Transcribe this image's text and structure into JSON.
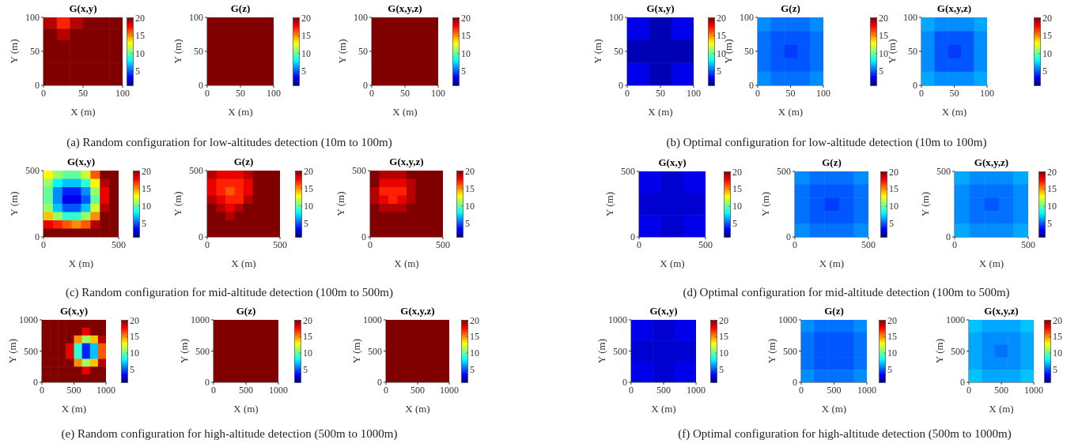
{
  "chart_data": [
    {
      "type": "heatmap",
      "title": "G(x,y)",
      "xlabel": "X (m)",
      "ylabel": "Y (m)",
      "xlim": [
        0,
        100
      ],
      "ylim": [
        0,
        100
      ],
      "xticks": [
        0,
        50,
        100
      ],
      "yticks": [
        0,
        50,
        100
      ],
      "clim": [
        1,
        20
      ],
      "cticks": [
        5,
        10,
        15,
        20
      ],
      "cells": [
        [
          19,
          17,
          19,
          20,
          20,
          20
        ],
        [
          20,
          19,
          20,
          20,
          20,
          20
        ],
        [
          20,
          20,
          20,
          20,
          20,
          20
        ],
        [
          20,
          20,
          20,
          20,
          20,
          20
        ],
        [
          20,
          20,
          20,
          20,
          20,
          20
        ],
        [
          20,
          20,
          20,
          20,
          20,
          20
        ]
      ]
    },
    {
      "type": "heatmap",
      "title": "G(z)",
      "xlabel": "X (m)",
      "ylabel": "Y (m)",
      "xlim": [
        0,
        100
      ],
      "ylim": [
        0,
        100
      ],
      "xticks": [
        0,
        50,
        100
      ],
      "yticks": [
        0,
        50,
        100
      ],
      "clim": [
        1,
        20
      ],
      "cticks": [
        5,
        10,
        15,
        20
      ],
      "cells": [
        [
          20
        ]
      ],
      "annotations": [
        "(a) Random configuration for low-altitudes detection (10m to 100m)"
      ]
    },
    {
      "type": "heatmap",
      "title": "G(x,y,z)",
      "xlabel": "X (m)",
      "ylabel": "Y (m)",
      "xlim": [
        0,
        100
      ],
      "ylim": [
        0,
        100
      ],
      "xticks": [
        0,
        50,
        100
      ],
      "yticks": [
        0,
        50,
        100
      ],
      "clim": [
        1,
        20
      ],
      "cticks": [
        5,
        10,
        15,
        20
      ],
      "cells": [
        [
          20
        ]
      ]
    },
    {
      "type": "heatmap",
      "title": "G(x,y)",
      "xlabel": "X (m)",
      "ylabel": "Y (m)",
      "xlim": [
        0,
        100
      ],
      "ylim": [
        0,
        100
      ],
      "xticks": [
        0,
        50,
        100
      ],
      "yticks": [
        0,
        50,
        100
      ],
      "clim": [
        1,
        20
      ],
      "cticks": [
        5,
        10,
        15,
        20
      ],
      "cells": [
        [
          3,
          2,
          3
        ],
        [
          2,
          2,
          2
        ],
        [
          3,
          2,
          3
        ]
      ]
    },
    {
      "type": "heatmap",
      "title": "G(z)",
      "xlabel": "X (m)",
      "ylabel": "Y (m)",
      "xlim": [
        0,
        100
      ],
      "ylim": [
        0,
        100
      ],
      "xticks": [
        0,
        50,
        100
      ],
      "yticks": [
        0,
        50,
        100
      ],
      "clim": [
        1,
        20
      ],
      "cticks": [
        5,
        10,
        15,
        20
      ],
      "cells": [
        [
          6,
          5.5,
          5.5,
          5.5,
          6
        ],
        [
          5.5,
          5,
          5,
          5,
          5.5
        ],
        [
          5.5,
          5,
          4.5,
          5,
          5.5
        ],
        [
          5.5,
          5,
          5,
          5,
          5.5
        ],
        [
          6,
          5.5,
          5.5,
          5.5,
          6
        ]
      ],
      "annotations": [
        "(b) Optimal configuration for low-altitude detection (10m to 100m)"
      ]
    },
    {
      "type": "heatmap",
      "title": "G(x,y,z)",
      "xlabel": "X (m)",
      "ylabel": "Y (m)",
      "xlim": [
        0,
        100
      ],
      "ylim": [
        0,
        100
      ],
      "xticks": [
        0,
        50,
        100
      ],
      "yticks": [
        0,
        50,
        100
      ],
      "clim": [
        1,
        20
      ],
      "cticks": [
        5,
        10,
        15,
        20
      ],
      "cells": [
        [
          6.5,
          6,
          6,
          6,
          6.5
        ],
        [
          6,
          5,
          5,
          5,
          6
        ],
        [
          6,
          5,
          4.5,
          5,
          6
        ],
        [
          6,
          5,
          5,
          5,
          6
        ],
        [
          6.5,
          6,
          6,
          6,
          6.5
        ]
      ]
    },
    {
      "type": "heatmap",
      "title": "G(x,y)",
      "xlabel": "X (m)",
      "ylabel": "Y (m)",
      "xlim": [
        0,
        500
      ],
      "ylim": [
        0,
        500
      ],
      "xticks": [
        0,
        500
      ],
      "yticks": [
        0,
        500
      ],
      "clim": [
        1,
        20
      ],
      "cticks": [
        5,
        10,
        15,
        20
      ],
      "cells": [
        [
          13,
          11,
          10,
          10,
          12,
          16,
          20,
          20
        ],
        [
          11,
          8,
          7,
          7,
          9,
          13,
          19,
          20
        ],
        [
          10,
          6,
          4,
          4,
          6,
          11,
          18,
          20
        ],
        [
          10,
          6,
          3,
          3,
          5,
          10,
          18,
          20
        ],
        [
          11,
          7,
          5,
          5,
          7,
          12,
          19,
          20
        ],
        [
          14,
          11,
          9,
          9,
          11,
          15,
          20,
          20
        ],
        [
          18,
          17,
          16,
          15,
          16,
          19,
          20,
          20
        ],
        [
          20,
          20,
          20,
          20,
          20,
          20,
          20,
          20
        ]
      ]
    },
    {
      "type": "heatmap",
      "title": "G(z)",
      "xlabel": "X (m)",
      "ylabel": "Y (m)",
      "xlim": [
        0,
        500
      ],
      "ylim": [
        0,
        500
      ],
      "xticks": [
        0,
        500
      ],
      "yticks": [
        0,
        500
      ],
      "clim": [
        1,
        20
      ],
      "cticks": [
        5,
        10,
        15,
        20
      ],
      "cells": [
        [
          19,
          18,
          18,
          18,
          19,
          20,
          20,
          20
        ],
        [
          18,
          17,
          17,
          17,
          18,
          20,
          20,
          20
        ],
        [
          18,
          17,
          16,
          17,
          18,
          20,
          20,
          20
        ],
        [
          19,
          18,
          17,
          17,
          19,
          20,
          20,
          20
        ],
        [
          20,
          19,
          18,
          19,
          20,
          20,
          20,
          20
        ],
        [
          20,
          20,
          19,
          20,
          20,
          20,
          20,
          20
        ],
        [
          20,
          20,
          20,
          20,
          20,
          20,
          20,
          20
        ],
        [
          20,
          20,
          20,
          20,
          20,
          20,
          20,
          20
        ]
      ],
      "annotations": [
        "(c) Random configuration for mid-altitude detection (100m to 500m)"
      ]
    },
    {
      "type": "heatmap",
      "title": "G(x,y,z)",
      "xlabel": "X (m)",
      "ylabel": "Y (m)",
      "xlim": [
        0,
        500
      ],
      "ylim": [
        0,
        500
      ],
      "xticks": [
        0,
        500
      ],
      "yticks": [
        0,
        500
      ],
      "clim": [
        1,
        20
      ],
      "cticks": [
        5,
        10,
        15,
        20
      ],
      "cells": [
        [
          20,
          19,
          19,
          19,
          20,
          20,
          20,
          20
        ],
        [
          20,
          18,
          18,
          18,
          19,
          20,
          20,
          20
        ],
        [
          19,
          17,
          17,
          17,
          19,
          20,
          20,
          20
        ],
        [
          19,
          18,
          17,
          18,
          19,
          20,
          20,
          20
        ],
        [
          20,
          19,
          19,
          19,
          20,
          20,
          20,
          20
        ],
        [
          20,
          20,
          20,
          20,
          20,
          20,
          20,
          20
        ],
        [
          20,
          20,
          20,
          20,
          20,
          20,
          20,
          20
        ],
        [
          20,
          20,
          20,
          20,
          20,
          20,
          20,
          20
        ]
      ]
    },
    {
      "type": "heatmap",
      "title": "G(x,y)",
      "xlabel": "X (m)",
      "ylabel": "Y (m)",
      "xlim": [
        0,
        500
      ],
      "ylim": [
        0,
        500
      ],
      "xticks": [
        0,
        500
      ],
      "yticks": [
        0,
        500
      ],
      "clim": [
        1,
        20
      ],
      "cticks": [
        5,
        10,
        15,
        20
      ],
      "cells": [
        [
          3,
          2.5,
          3
        ],
        [
          2.5,
          2.5,
          2.5
        ],
        [
          3,
          2.5,
          3
        ]
      ]
    },
    {
      "type": "heatmap",
      "title": "G(z)",
      "xlabel": "X (m)",
      "ylabel": "Y (m)",
      "xlim": [
        0,
        500
      ],
      "ylim": [
        0,
        500
      ],
      "xticks": [
        0,
        500
      ],
      "yticks": [
        0,
        500
      ],
      "clim": [
        1,
        20
      ],
      "cticks": [
        5,
        10,
        15,
        20
      ],
      "cells": [
        [
          6,
          5.5,
          5.5,
          5.5,
          6
        ],
        [
          5.5,
          5,
          5,
          5,
          5.5
        ],
        [
          5.5,
          5,
          4.5,
          5,
          5.5
        ],
        [
          5.5,
          5,
          5,
          5,
          5.5
        ],
        [
          6,
          5.5,
          5.5,
          5.5,
          6
        ]
      ],
      "annotations": [
        "(d) Optimal configuration for mid-altitude detection (100m to 500m)"
      ]
    },
    {
      "type": "heatmap",
      "title": "G(x,y,z)",
      "xlabel": "X (m)",
      "ylabel": "Y (m)",
      "xlim": [
        0,
        500
      ],
      "ylim": [
        0,
        500
      ],
      "xticks": [
        0,
        500
      ],
      "yticks": [
        0,
        500
      ],
      "clim": [
        1,
        20
      ],
      "cticks": [
        5,
        10,
        15,
        20
      ],
      "cells": [
        [
          6.5,
          6,
          6,
          6,
          6.5
        ],
        [
          6,
          5.5,
          5.5,
          5.5,
          6
        ],
        [
          6,
          5.5,
          5,
          5.5,
          6
        ],
        [
          6,
          5.5,
          5.5,
          5.5,
          6
        ],
        [
          6.5,
          6,
          6,
          6,
          6.5
        ]
      ]
    },
    {
      "type": "heatmap",
      "title": "G(x,y)",
      "xlabel": "X (m)",
      "ylabel": "Y (m)",
      "xlim": [
        0,
        1000
      ],
      "ylim": [
        0,
        1000
      ],
      "xticks": [
        0,
        500,
        1000
      ],
      "yticks": [
        0,
        500,
        1000
      ],
      "clim": [
        1,
        20
      ],
      "cticks": [
        5,
        10,
        15,
        20
      ],
      "cells": [
        [
          20,
          20,
          20,
          20,
          20,
          20,
          20,
          20
        ],
        [
          20,
          20,
          20,
          20,
          20,
          18,
          20,
          20
        ],
        [
          20,
          20,
          20,
          20,
          15,
          11,
          14,
          19
        ],
        [
          20,
          20,
          20,
          18,
          9,
          4,
          7,
          16
        ],
        [
          20,
          20,
          20,
          18,
          9,
          4,
          7,
          16
        ],
        [
          20,
          20,
          20,
          20,
          15,
          11,
          14,
          19
        ],
        [
          20,
          20,
          20,
          20,
          20,
          18,
          20,
          20
        ],
        [
          20,
          20,
          20,
          20,
          20,
          20,
          20,
          20
        ]
      ]
    },
    {
      "type": "heatmap",
      "title": "G(z)",
      "xlabel": "X (m)",
      "ylabel": "Y (m)",
      "xlim": [
        0,
        1000
      ],
      "ylim": [
        0,
        1000
      ],
      "xticks": [
        0,
        500,
        1000
      ],
      "yticks": [
        0,
        500,
        1000
      ],
      "clim": [
        1,
        20
      ],
      "cticks": [
        5,
        10,
        15,
        20
      ],
      "cells": [
        [
          20
        ]
      ],
      "annotations": [
        "(e) Random configuration for high-altitude detection (500m to 1000m)"
      ]
    },
    {
      "type": "heatmap",
      "title": "G(x,y,z)",
      "xlabel": "X (m)",
      "ylabel": "Y (m)",
      "xlim": [
        0,
        1000
      ],
      "ylim": [
        0,
        1000
      ],
      "xticks": [
        0,
        500,
        1000
      ],
      "yticks": [
        0,
        500,
        1000
      ],
      "clim": [
        1,
        20
      ],
      "cticks": [
        5,
        10,
        15,
        20
      ],
      "cells": [
        [
          20
        ]
      ]
    },
    {
      "type": "heatmap",
      "title": "G(x,y)",
      "xlabel": "X (m)",
      "ylabel": "Y (m)",
      "xlim": [
        0,
        1000
      ],
      "ylim": [
        0,
        1000
      ],
      "xticks": [
        0,
        500,
        1000
      ],
      "yticks": [
        0,
        500,
        1000
      ],
      "clim": [
        1,
        20
      ],
      "cticks": [
        5,
        10,
        15,
        20
      ],
      "cells": [
        [
          3,
          2.5,
          3
        ],
        [
          2.5,
          2.5,
          2.5
        ],
        [
          3,
          2.5,
          3
        ]
      ]
    },
    {
      "type": "heatmap",
      "title": "G(z)",
      "xlabel": "X (m)",
      "ylabel": "Y (m)",
      "xlim": [
        0,
        1000
      ],
      "ylim": [
        0,
        1000
      ],
      "xticks": [
        0,
        500,
        1000
      ],
      "yticks": [
        0,
        500,
        1000
      ],
      "clim": [
        1,
        20
      ],
      "cticks": [
        5,
        10,
        15,
        20
      ],
      "cells": [
        [
          6,
          5.5,
          5.5,
          5.5,
          6
        ],
        [
          5.5,
          5,
          5,
          5,
          5.5
        ],
        [
          5.5,
          5,
          5,
          5,
          5.5
        ],
        [
          5.5,
          5,
          5,
          5,
          5.5
        ],
        [
          6,
          5.5,
          5.5,
          5.5,
          6
        ]
      ],
      "annotations": [
        "(f) Optimal configuration for high-altitude detection (500m to 1000m)"
      ]
    },
    {
      "type": "heatmap",
      "title": "G(x,y,z)",
      "xlabel": "X (m)",
      "ylabel": "Y (m)",
      "xlim": [
        0,
        1000
      ],
      "ylim": [
        0,
        1000
      ],
      "xticks": [
        0,
        500,
        1000
      ],
      "yticks": [
        0,
        500,
        1000
      ],
      "clim": [
        1,
        20
      ],
      "cticks": [
        5,
        10,
        15,
        20
      ],
      "cells": [
        [
          7,
          6.5,
          6.5,
          6.5,
          7
        ],
        [
          6.5,
          6,
          6,
          6,
          6.5
        ],
        [
          6.5,
          6,
          5.5,
          6,
          6.5
        ],
        [
          6.5,
          6,
          6,
          6,
          6.5
        ],
        [
          7,
          6.5,
          6.5,
          6.5,
          7
        ]
      ]
    }
  ]
}
